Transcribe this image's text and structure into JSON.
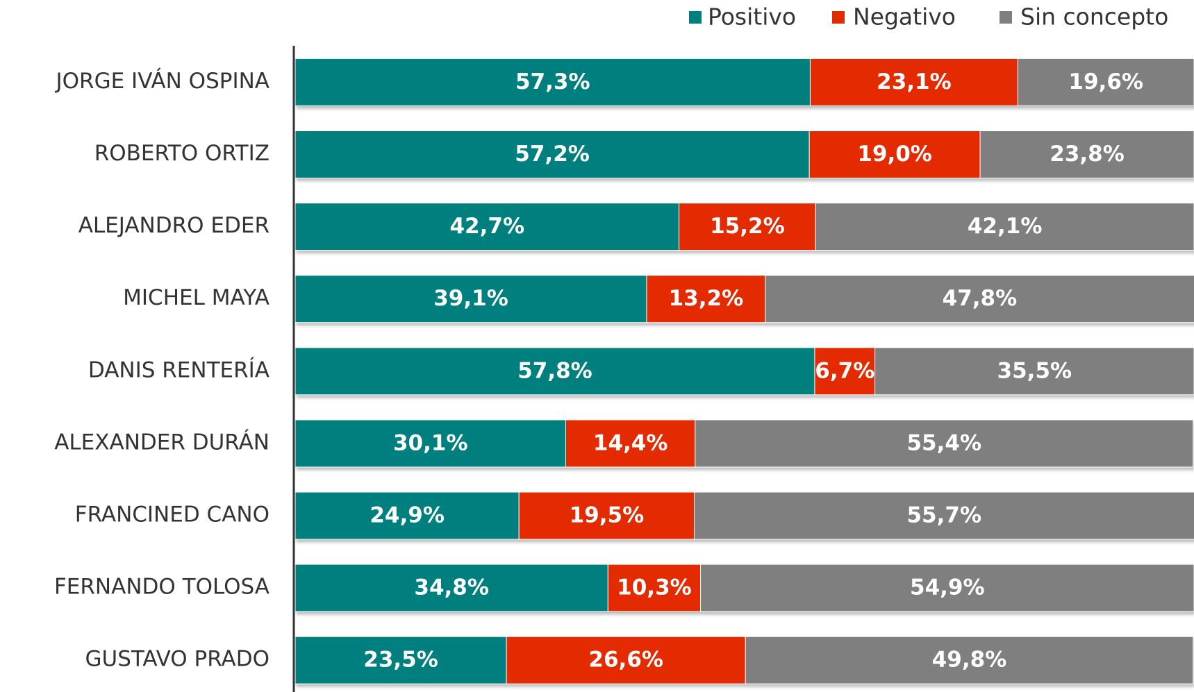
{
  "chart_data": {
    "type": "stacked_bar_horizontal",
    "categories": [
      "JORGE IVÁN OSPINA",
      "ROBERTO ORTIZ",
      "ALEJANDRO EDER",
      "MICHEL MAYA",
      "DANIS RENTERÍA",
      "ALEXANDER DURÁN",
      "FRANCINED CANO",
      "FERNANDO TOLOSA",
      "GUSTAVO PRADO"
    ],
    "series": [
      {
        "name": "Positivo",
        "color": "#007f7f",
        "values": [
          57.3,
          57.2,
          42.7,
          39.1,
          57.8,
          30.1,
          24.9,
          34.8,
          23.5
        ],
        "value_labels": [
          "57,3%",
          "57,2%",
          "42,7%",
          "39,1%",
          "57,8%",
          "30,1%",
          "24,9%",
          "34,8%",
          "23,5%"
        ]
      },
      {
        "name": "Negativo",
        "color": "#e32b00",
        "values": [
          23.1,
          19.0,
          15.2,
          13.2,
          6.7,
          14.4,
          19.5,
          10.3,
          26.6
        ],
        "value_labels": [
          "23,1%",
          "19,0%",
          "15,2%",
          "13,2%",
          "6,7%",
          "14,4%",
          "19,5%",
          "10,3%",
          "26,6%"
        ]
      },
      {
        "name": "Sin concepto",
        "color": "#7f7f7f",
        "values": [
          19.6,
          23.8,
          42.1,
          47.8,
          35.5,
          55.4,
          55.7,
          54.9,
          49.8
        ],
        "value_labels": [
          "19,6%",
          "23,8%",
          "42,1%",
          "47,8%",
          "35,5%",
          "55,4%",
          "55,7%",
          "54,9%",
          "49,8%"
        ]
      }
    ],
    "xlim": [
      0,
      100
    ],
    "legend": "top-right"
  }
}
